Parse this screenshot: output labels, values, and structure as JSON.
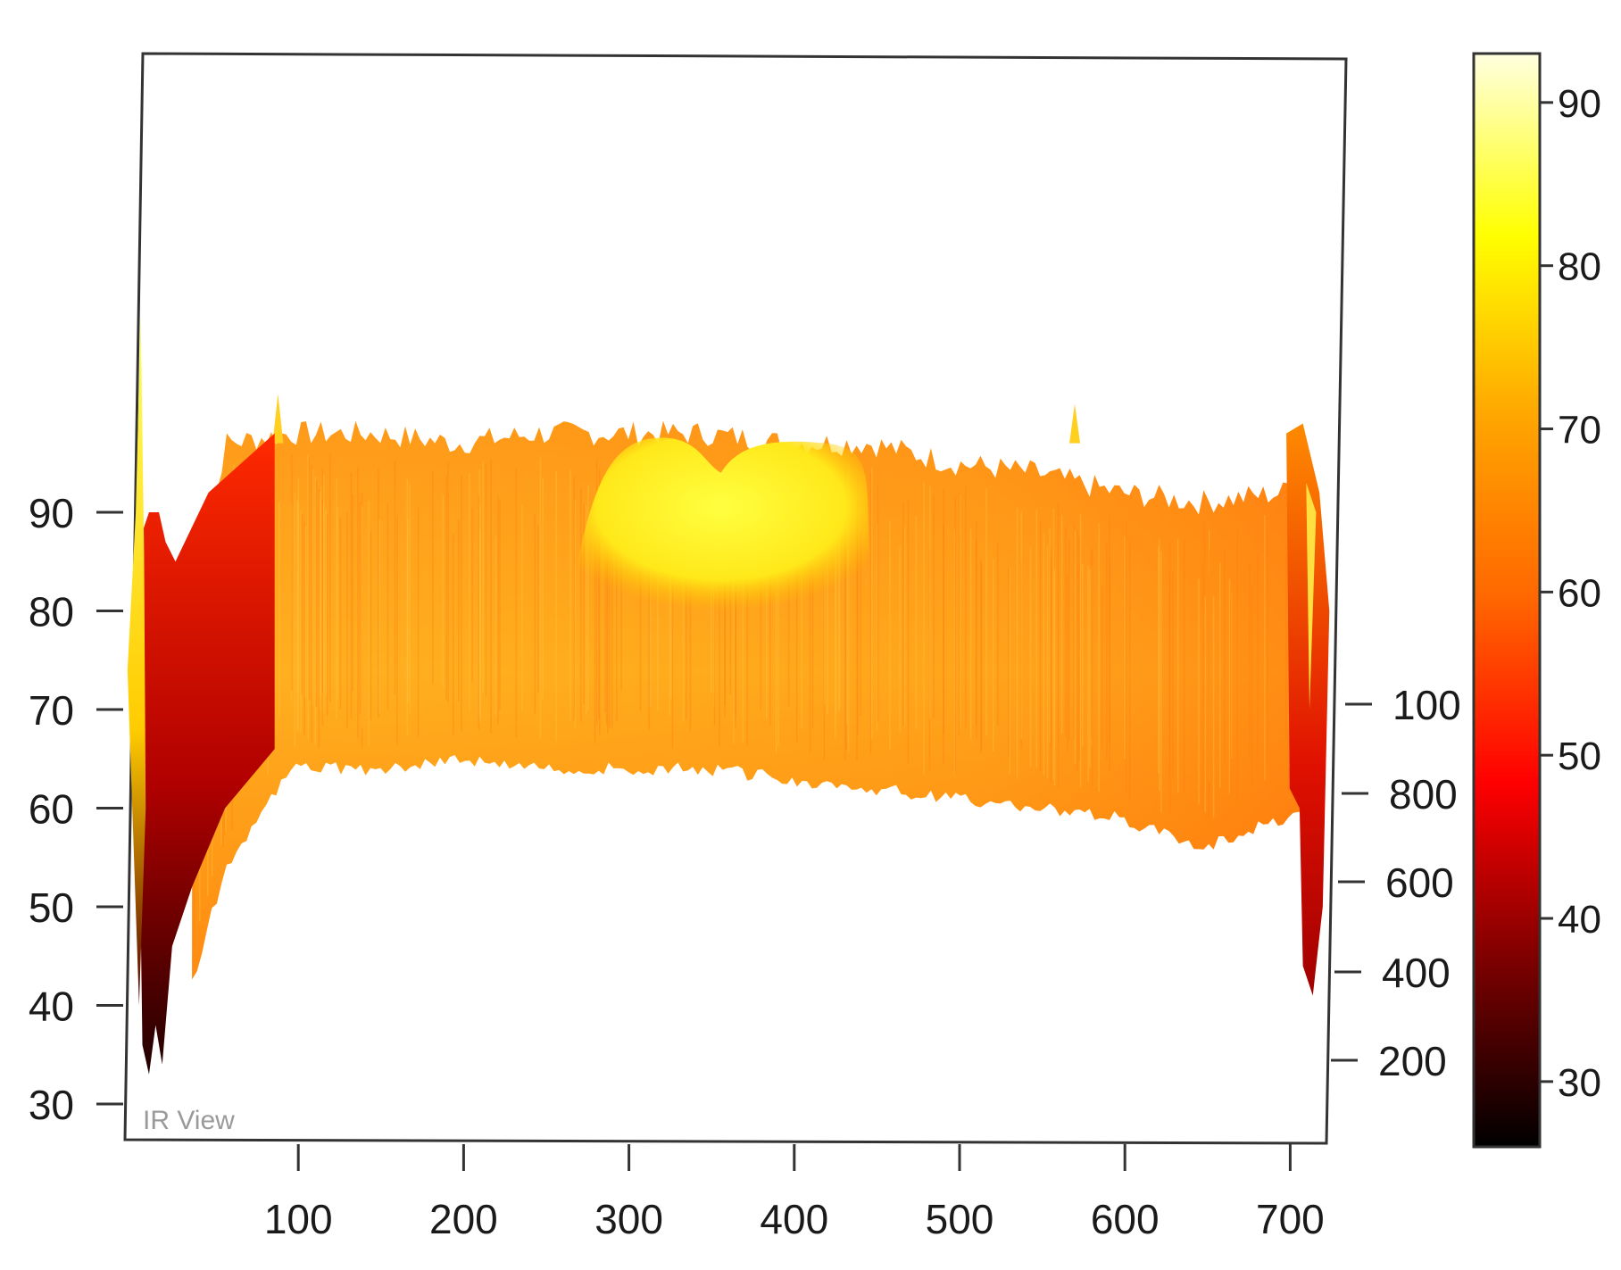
{
  "chart_data": {
    "type": "heatmap",
    "subtype": "3d-surface perspective",
    "watermark": "IR View",
    "x_axis": {
      "ticks": [
        100,
        200,
        300,
        400,
        500,
        600,
        700
      ],
      "range": [
        0,
        730
      ]
    },
    "z_axis_left": {
      "ticks": [
        30,
        40,
        50,
        60,
        70,
        80,
        90
      ],
      "range": [
        27,
        102
      ]
    },
    "depth_axis_right": {
      "tick_labels": [
        "200",
        "400",
        "600",
        "800",
        "100"
      ]
    },
    "colorbar": {
      "ticks": [
        30,
        40,
        50,
        60,
        70,
        80,
        90
      ],
      "range": [
        26,
        93
      ],
      "palette": "heat",
      "stops": [
        "#000000",
        "#7a0000",
        "#ff0000",
        "#ff6600",
        "#ffa500",
        "#ffff00",
        "#ffffe0"
      ]
    },
    "surface": {
      "front_edge_x": [
        40,
        60,
        100,
        150,
        200,
        250,
        300,
        350,
        400,
        450,
        500,
        550,
        600,
        650,
        700,
        712
      ],
      "front_edge_z": [
        42,
        54,
        64,
        64,
        65,
        64,
        64,
        64,
        63,
        62,
        61,
        60,
        59,
        56,
        59,
        60
      ],
      "back_edge_x": [
        40,
        60,
        100,
        150,
        200,
        250,
        300,
        350,
        400,
        450,
        500,
        550,
        600,
        650,
        700,
        712
      ],
      "back_edge_z": [
        78,
        97,
        98,
        98,
        97,
        98,
        98,
        98,
        97,
        97,
        95,
        94,
        92,
        91,
        92,
        95
      ],
      "hot_region_x": [
        270,
        450
      ],
      "hot_region_value": 74,
      "typical_value": 64
    }
  }
}
